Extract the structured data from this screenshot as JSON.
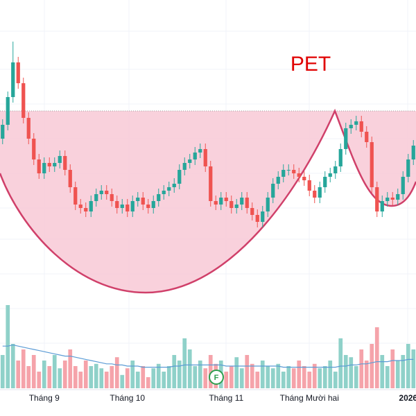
{
  "chart_data": {
    "type": "candlestick",
    "title": "PET",
    "up_color": "#26a69a",
    "down_color": "#ef5350",
    "volume_up_color": "#8fd1c9",
    "volume_down_color": "#f5a3aa",
    "ma_color": "#5b9bd5",
    "marker": "F",
    "categories": [
      null,
      null,
      null,
      null,
      null,
      null,
      null,
      null,
      "Tháng 9",
      null,
      null,
      null,
      null,
      null,
      null,
      null,
      null,
      null,
      null,
      null,
      null,
      null,
      null,
      null,
      "Tháng 10",
      null,
      null,
      null,
      null,
      null,
      null,
      null,
      null,
      null,
      null,
      null,
      null,
      null,
      null,
      null,
      null,
      null,
      null,
      "Tháng 11",
      null,
      null,
      null,
      null,
      null,
      null,
      null,
      null,
      null,
      null,
      null,
      null,
      null,
      null,
      null,
      "Tháng Mười hai",
      null,
      null,
      null,
      null,
      null,
      null,
      null,
      null,
      null,
      null,
      null,
      null,
      null,
      null,
      null,
      null,
      null,
      null,
      "2026",
      null
    ],
    "open": [
      200,
      220,
      260,
      310,
      280,
      230,
      200,
      170,
      150,
      165,
      160,
      165,
      175,
      155,
      130,
      105,
      100,
      95,
      110,
      120,
      125,
      120,
      110,
      100,
      105,
      95,
      110,
      115,
      105,
      100,
      110,
      120,
      125,
      130,
      135,
      155,
      165,
      170,
      180,
      185,
      160,
      110,
      105,
      115,
      110,
      100,
      105,
      115,
      100,
      90,
      80,
      95,
      115,
      135,
      145,
      155,
      155,
      150,
      145,
      140,
      125,
      115,
      130,
      145,
      150,
      160,
      185,
      215,
      220,
      225,
      210,
      195,
      130,
      95,
      110,
      115,
      112,
      120,
      145,
      170
    ],
    "high": [
      228,
      268,
      340,
      318,
      288,
      238,
      208,
      178,
      173,
      173,
      173,
      183,
      183,
      163,
      138,
      113,
      108,
      118,
      128,
      133,
      133,
      128,
      118,
      113,
      113,
      118,
      123,
      123,
      113,
      118,
      128,
      133,
      138,
      143,
      163,
      173,
      178,
      188,
      193,
      193,
      168,
      118,
      123,
      123,
      118,
      113,
      123,
      123,
      108,
      98,
      103,
      123,
      143,
      153,
      163,
      163,
      163,
      158,
      153,
      148,
      133,
      138,
      153,
      158,
      168,
      193,
      223,
      228,
      233,
      233,
      218,
      203,
      138,
      118,
      123,
      123,
      128,
      153,
      178,
      198
    ],
    "low": [
      192,
      212,
      252,
      272,
      222,
      192,
      162,
      142,
      142,
      152,
      152,
      157,
      147,
      122,
      97,
      92,
      87,
      87,
      102,
      112,
      112,
      102,
      92,
      92,
      87,
      87,
      102,
      97,
      92,
      92,
      102,
      112,
      117,
      122,
      127,
      147,
      157,
      162,
      172,
      152,
      102,
      97,
      97,
      102,
      92,
      92,
      97,
      92,
      82,
      72,
      72,
      87,
      107,
      127,
      137,
      147,
      142,
      137,
      132,
      117,
      107,
      107,
      122,
      137,
      142,
      152,
      177,
      207,
      212,
      202,
      187,
      122,
      87,
      87,
      102,
      104,
      104,
      112,
      137,
      162
    ],
    "close": [
      220,
      260,
      310,
      280,
      230,
      200,
      170,
      150,
      165,
      160,
      165,
      175,
      155,
      130,
      105,
      100,
      95,
      110,
      120,
      125,
      120,
      110,
      100,
      105,
      95,
      110,
      115,
      105,
      100,
      110,
      120,
      125,
      130,
      135,
      155,
      165,
      170,
      180,
      185,
      160,
      110,
      105,
      115,
      110,
      100,
      105,
      115,
      100,
      90,
      80,
      95,
      115,
      135,
      145,
      155,
      155,
      150,
      145,
      140,
      125,
      115,
      130,
      145,
      150,
      160,
      185,
      215,
      220,
      225,
      210,
      195,
      130,
      95,
      110,
      115,
      112,
      120,
      145,
      170,
      190
    ],
    "ylim": [
      0,
      400
    ],
    "volume": [
      30,
      75,
      40,
      25,
      35,
      20,
      30,
      15,
      25,
      20,
      30,
      18,
      25,
      35,
      20,
      15,
      25,
      20,
      22,
      18,
      15,
      20,
      28,
      12,
      18,
      25,
      15,
      20,
      10,
      18,
      22,
      15,
      20,
      30,
      25,
      45,
      35,
      20,
      25,
      18,
      30,
      22,
      25,
      15,
      20,
      28,
      18,
      30,
      22,
      15,
      25,
      20,
      18,
      22,
      15,
      20,
      18,
      25,
      20,
      15,
      22,
      18,
      20,
      25,
      15,
      45,
      30,
      28,
      20,
      35,
      25,
      40,
      55,
      30,
      20,
      35,
      25,
      30,
      40,
      35
    ],
    "volume_ma": [
      38,
      38,
      39,
      38,
      37,
      36,
      35,
      34,
      33,
      32,
      31,
      30,
      29,
      29,
      28,
      27,
      26,
      25,
      24,
      23,
      22,
      22,
      21,
      21,
      20,
      20,
      20,
      19,
      19,
      19,
      19,
      19,
      19,
      20,
      20,
      21,
      21,
      21,
      21,
      21,
      21,
      21,
      21,
      20,
      20,
      20,
      20,
      20,
      20,
      20,
      20,
      20,
      20,
      20,
      19,
      19,
      19,
      19,
      19,
      19,
      19,
      19,
      19,
      19,
      19,
      20,
      20,
      21,
      21,
      22,
      22,
      23,
      24,
      24,
      24,
      25,
      25,
      25,
      26,
      26
    ],
    "vlim": [
      0,
      100
    ]
  }
}
